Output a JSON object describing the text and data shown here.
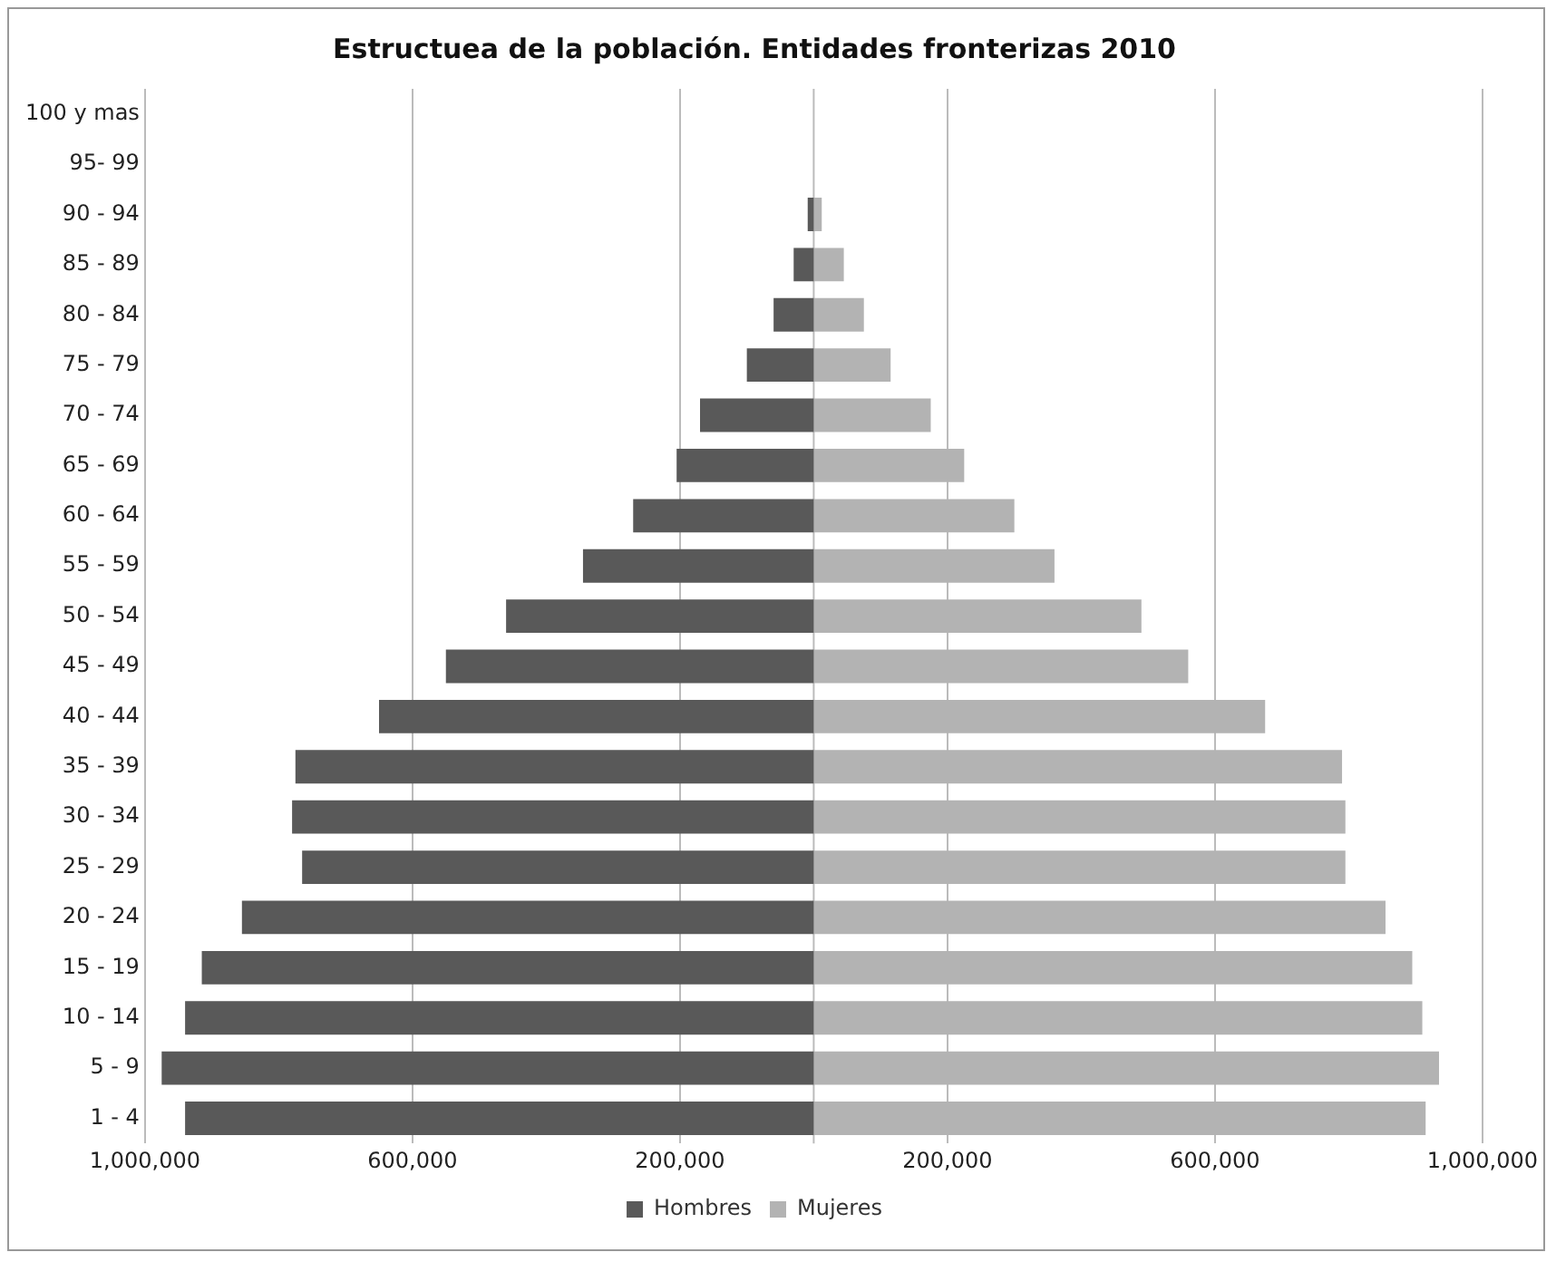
{
  "chart_data": {
    "type": "bar",
    "orientation": "horizontal",
    "stacked": true,
    "title": "Estructuea de la población. Entidades fronterizas 2010",
    "categories": [
      "100 y mas",
      "95- 99",
      "90 - 94",
      "85 - 89",
      "80 - 84",
      "75 - 79",
      "70 - 74",
      "65 - 69",
      "60 - 64",
      "55 - 59",
      "50 - 54",
      "45 - 49",
      "40 - 44",
      "35 - 39",
      "30 - 34",
      "25 - 29",
      "20 - 24",
      "15 - 19",
      "10 - 14",
      "5 - 9",
      "1 - 4"
    ],
    "series": [
      {
        "name": "Hombres",
        "color": "#595959",
        "values": [
          null,
          null,
          -9000,
          -30000,
          -60000,
          -100000,
          -170000,
          -205000,
          -270000,
          -345000,
          -460000,
          -550000,
          -650000,
          -775000,
          -780000,
          -765000,
          -855000,
          -915000,
          -940000,
          -975000,
          -940000
        ]
      },
      {
        "name": "Mujeres",
        "color": "#b3b3b3",
        "values": [
          null,
          null,
          12000,
          45000,
          75000,
          115000,
          175000,
          225000,
          300000,
          360000,
          490000,
          560000,
          675000,
          790000,
          795000,
          795000,
          855000,
          895000,
          910000,
          935000,
          915000
        ]
      }
    ],
    "xlim": [
      -1000000,
      1000000
    ],
    "xticks": [
      {
        "value": -1000000,
        "label": "1,000,000"
      },
      {
        "value": -600000,
        "label": "600,000"
      },
      {
        "value": -200000,
        "label": "200,000"
      },
      {
        "value": 200000,
        "label": "200,000"
      },
      {
        "value": 600000,
        "label": "600,000"
      },
      {
        "value": 1000000,
        "label": "1,000,000"
      }
    ],
    "grid": "x",
    "legend": "bottom"
  }
}
